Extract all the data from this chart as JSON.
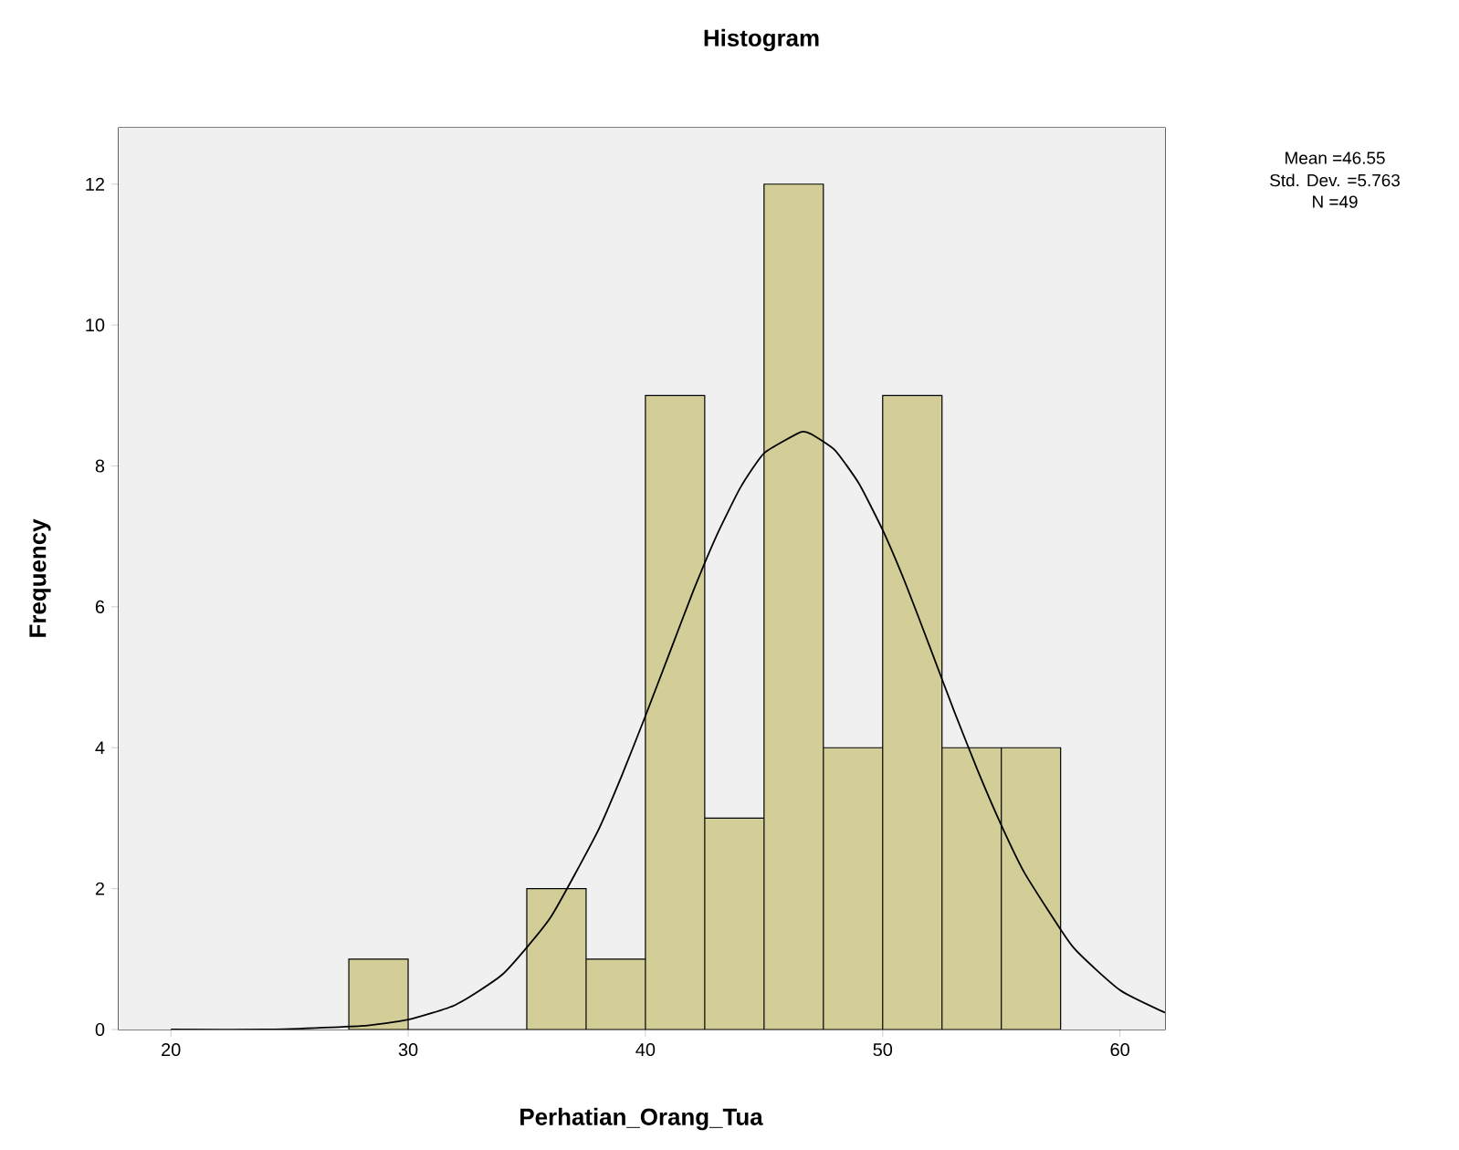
{
  "chart_data": {
    "type": "histogram",
    "title": "Histogram",
    "xlabel": "Perhatian_Orang_Tua",
    "ylabel": "Frequency",
    "annotations": [
      "Mean =46.55",
      "Std. Dev. =5.763",
      "N =49"
    ],
    "series": [
      {
        "color": "#d3ce97",
        "bins": [
          27.5,
          30,
          32.5,
          35,
          37.5,
          40,
          42.5,
          45,
          47.5,
          50,
          52.5,
          55,
          57.5
        ],
        "values": [
          1,
          0,
          0,
          2,
          1,
          9,
          3,
          12,
          4,
          9,
          4,
          4
        ]
      },
      {
        "type": "line",
        "color": "#000000",
        "x": [
          20,
          24,
          28,
          30,
          32,
          34,
          36,
          38,
          39,
          40,
          41,
          42,
          43,
          44,
          45,
          46.55,
          47,
          48,
          49,
          50,
          51,
          52,
          53,
          54,
          55,
          56,
          58,
          60,
          61.9
        ],
        "values": [
          0,
          0,
          0.05,
          0.14,
          0.35,
          0.79,
          1.59,
          2.82,
          3.6,
          4.45,
          5.33,
          6.21,
          7.01,
          7.69,
          8.18,
          8.48,
          8.45,
          8.22,
          7.75,
          7.09,
          6.3,
          5.42,
          4.53,
          3.68,
          2.9,
          2.21,
          1.18,
          0.56,
          0.24
        ]
      }
    ],
    "xlim": [
      17.8,
      61.9
    ],
    "ylim": [
      0,
      12.8
    ],
    "xticks": [
      20,
      30,
      40,
      50,
      60
    ],
    "yticks": [
      0,
      2,
      4,
      6,
      8,
      10,
      12
    ],
    "grid": false
  }
}
